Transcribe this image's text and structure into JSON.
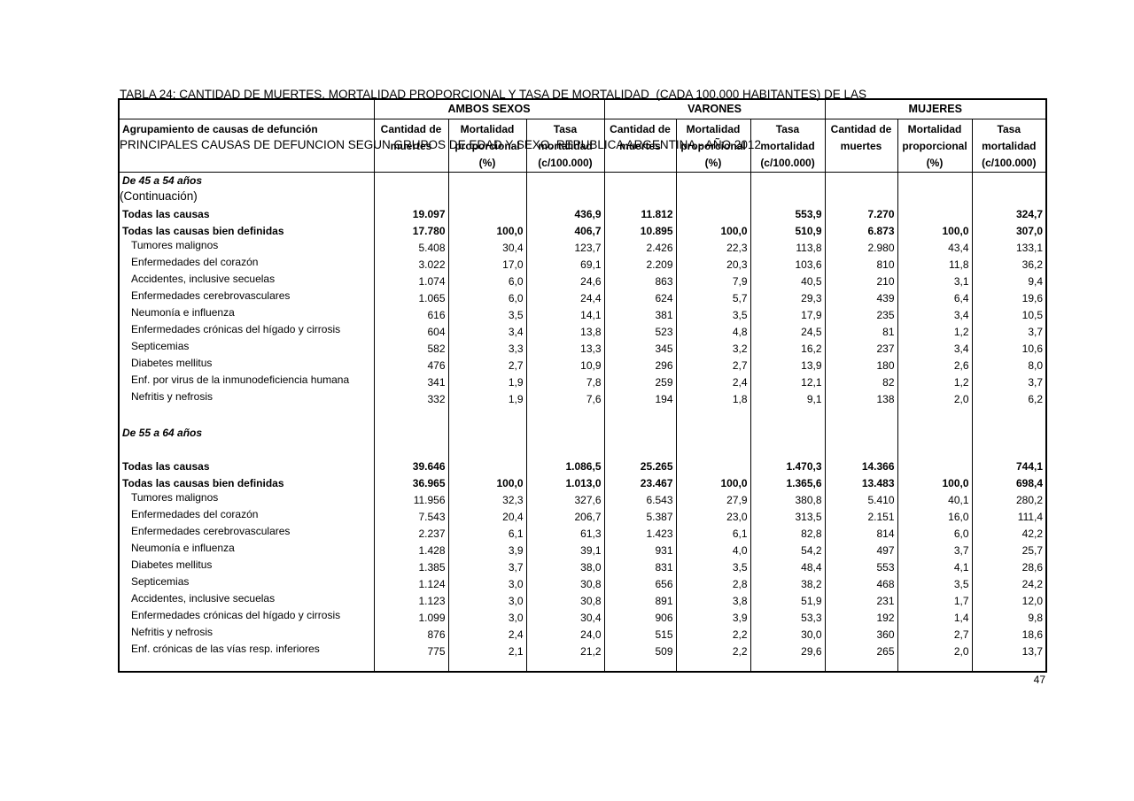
{
  "header": {
    "title_line1": "TABLA 24: CANTIDAD DE MUERTES, MORTALIDAD PROPORCIONAL Y TASA DE MORTALIDAD  (CADA 100.000 HABITANTES) DE LAS",
    "title_line2": "PRINCIPALES CAUSAS DE DEFUNCION SEGUN GRUPOS DE EDAD Y SEXO. REPUBLICA ARGENTINA - AÑO 2012",
    "continuation": "(Continuación)"
  },
  "table": {
    "row_header": "Agrupamiento de causas de defunción",
    "groups": [
      "AMBOS SEXOS",
      "VARONES",
      "MUJERES"
    ],
    "col_headers": [
      {
        "l1": "Cantidad de",
        "l2": "muertes",
        "l3": ""
      },
      {
        "l1": "Mortalidad",
        "l2": "proporcional",
        "l3": "(%)"
      },
      {
        "l1": "Tasa",
        "l2": "mortalidad",
        "l3": "(c/100.000)"
      }
    ],
    "value_columns_order": [
      "ambos_cantidad",
      "ambos_proporcional",
      "ambos_tasa",
      "varones_cantidad",
      "varones_proporcional",
      "varones_tasa",
      "mujeres_cantidad",
      "mujeres_proporcional",
      "mujeres_tasa"
    ],
    "rows": [
      {
        "type": "section",
        "label": "De 45 a 54 años"
      },
      {
        "type": "blank"
      },
      {
        "type": "total",
        "label": "Todas las causas",
        "values": [
          "19.097",
          "",
          "436,9",
          "11.812",
          "",
          "553,9",
          "7.270",
          "",
          "324,7"
        ]
      },
      {
        "type": "total",
        "label": "Todas las causas bien definidas",
        "values": [
          "17.780",
          "100,0",
          "406,7",
          "10.895",
          "100,0",
          "510,9",
          "6.873",
          "100,0",
          "307,0"
        ]
      },
      {
        "type": "item",
        "label": "Tumores malignos",
        "values": [
          "5.408",
          "30,4",
          "123,7",
          "2.426",
          "22,3",
          "113,8",
          "2.980",
          "43,4",
          "133,1"
        ]
      },
      {
        "type": "item",
        "label": "Enfermedades del corazón",
        "values": [
          "3.022",
          "17,0",
          "69,1",
          "2.209",
          "20,3",
          "103,6",
          "810",
          "11,8",
          "36,2"
        ]
      },
      {
        "type": "item",
        "label": "Accidentes, inclusive secuelas",
        "values": [
          "1.074",
          "6,0",
          "24,6",
          "863",
          "7,9",
          "40,5",
          "210",
          "3,1",
          "9,4"
        ]
      },
      {
        "type": "item",
        "label": "Enfermedades cerebrovasculares",
        "values": [
          "1.065",
          "6,0",
          "24,4",
          "624",
          "5,7",
          "29,3",
          "439",
          "6,4",
          "19,6"
        ]
      },
      {
        "type": "item",
        "label": "Neumonía e influenza",
        "values": [
          "616",
          "3,5",
          "14,1",
          "381",
          "3,5",
          "17,9",
          "235",
          "3,4",
          "10,5"
        ]
      },
      {
        "type": "item",
        "label": "Enfermedades crónicas del hígado y cirrosis",
        "values": [
          "604",
          "3,4",
          "13,8",
          "523",
          "4,8",
          "24,5",
          "81",
          "1,2",
          "3,7"
        ]
      },
      {
        "type": "item",
        "label": "Septicemias",
        "values": [
          "582",
          "3,3",
          "13,3",
          "345",
          "3,2",
          "16,2",
          "237",
          "3,4",
          "10,6"
        ]
      },
      {
        "type": "item",
        "label": "Diabetes mellitus",
        "values": [
          "476",
          "2,7",
          "10,9",
          "296",
          "2,7",
          "13,9",
          "180",
          "2,6",
          "8,0"
        ]
      },
      {
        "type": "item",
        "label": "Enf. por virus de la inmunodeficiencia humana",
        "values": [
          "341",
          "1,9",
          "7,8",
          "259",
          "2,4",
          "12,1",
          "82",
          "1,2",
          "3,7"
        ]
      },
      {
        "type": "item",
        "label": "Nefritis y nefrosis",
        "values": [
          "332",
          "1,9",
          "7,6",
          "194",
          "1,8",
          "9,1",
          "138",
          "2,0",
          "6,2"
        ]
      },
      {
        "type": "blank"
      },
      {
        "type": "section",
        "label": "De 55 a 64 años"
      },
      {
        "type": "blank"
      },
      {
        "type": "total",
        "label": "Todas las causas",
        "values": [
          "39.646",
          "",
          "1.086,5",
          "25.265",
          "",
          "1.470,3",
          "14.366",
          "",
          "744,1"
        ]
      },
      {
        "type": "total",
        "label": "Todas las causas bien definidas",
        "values": [
          "36.965",
          "100,0",
          "1.013,0",
          "23.467",
          "100,0",
          "1.365,6",
          "13.483",
          "100,0",
          "698,4"
        ]
      },
      {
        "type": "item",
        "label": "Tumores malignos",
        "values": [
          "11.956",
          "32,3",
          "327,6",
          "6.543",
          "27,9",
          "380,8",
          "5.410",
          "40,1",
          "280,2"
        ]
      },
      {
        "type": "item",
        "label": "Enfermedades del corazón",
        "values": [
          "7.543",
          "20,4",
          "206,7",
          "5.387",
          "23,0",
          "313,5",
          "2.151",
          "16,0",
          "111,4"
        ]
      },
      {
        "type": "item",
        "label": "Enfermedades cerebrovasculares",
        "values": [
          "2.237",
          "6,1",
          "61,3",
          "1.423",
          "6,1",
          "82,8",
          "814",
          "6,0",
          "42,2"
        ]
      },
      {
        "type": "item",
        "label": "Neumonía e influenza",
        "values": [
          "1.428",
          "3,9",
          "39,1",
          "931",
          "4,0",
          "54,2",
          "497",
          "3,7",
          "25,7"
        ]
      },
      {
        "type": "item",
        "label": "Diabetes mellitus",
        "values": [
          "1.385",
          "3,7",
          "38,0",
          "831",
          "3,5",
          "48,4",
          "553",
          "4,1",
          "28,6"
        ]
      },
      {
        "type": "item",
        "label": "Septicemias",
        "values": [
          "1.124",
          "3,0",
          "30,8",
          "656",
          "2,8",
          "38,2",
          "468",
          "3,5",
          "24,2"
        ]
      },
      {
        "type": "item",
        "label": "Accidentes, inclusive secuelas",
        "values": [
          "1.123",
          "3,0",
          "30,8",
          "891",
          "3,8",
          "51,9",
          "231",
          "1,7",
          "12,0"
        ]
      },
      {
        "type": "item",
        "label": "Enfermedades crónicas del hígado y cirrosis",
        "values": [
          "1.099",
          "3,0",
          "30,4",
          "906",
          "3,9",
          "53,3",
          "192",
          "1,4",
          "9,8"
        ]
      },
      {
        "type": "item",
        "label": "Nefritis y nefrosis",
        "values": [
          "876",
          "2,4",
          "24,0",
          "515",
          "2,2",
          "30,0",
          "360",
          "2,7",
          "18,6"
        ]
      },
      {
        "type": "item",
        "label": "Enf. crónicas de las vías resp. inferiores",
        "values": [
          "775",
          "2,1",
          "21,2",
          "509",
          "2,2",
          "29,6",
          "265",
          "2,0",
          "13,7"
        ]
      },
      {
        "type": "pad"
      }
    ]
  },
  "footer": {
    "page_number": "47"
  }
}
